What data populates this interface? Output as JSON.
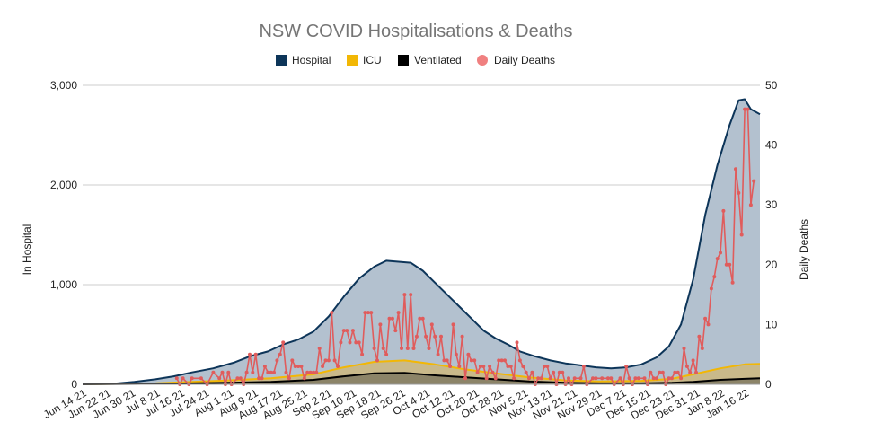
{
  "chart_data": {
    "type": "area",
    "title": "NSW COVID Hospitalisations & Deaths",
    "ylabel": "In Hospital",
    "y2label": "Daily Deaths",
    "ylim": [
      0,
      3000
    ],
    "y2lim": [
      0,
      50
    ],
    "yticks": [
      "0",
      "1,000",
      "2,000",
      "3,000"
    ],
    "y2ticks": [
      "0",
      "10",
      "20",
      "30",
      "40",
      "50"
    ],
    "x_tick_labels": [
      "Jun 14 21",
      "Jun 22 21",
      "Jun 30 21",
      "Jul 8 21",
      "Jul 16 21",
      "Jul 24 21",
      "Aug 1 21",
      "Aug 9 21",
      "Aug 17 21",
      "Aug 25 21",
      "Sep 2 21",
      "Sep 10 21",
      "Sep 18 21",
      "Sep 26 21",
      "Oct 4 21",
      "Oct 12 21",
      "Oct 20 21",
      "Oct 28 21",
      "Nov 5 21",
      "Nov 13 21",
      "Nov 21 21",
      "Nov 29 21",
      "Dec 7 21",
      "Dec 15 21",
      "Dec 23 21",
      "Dec 31 21",
      "Jan 8 22",
      "Jan 16 22"
    ],
    "x_start": "2021-06-14",
    "x_end": "2022-01-23",
    "legend_position": "top-center",
    "grid": true,
    "colors": {
      "hospital_line": "#0d3559",
      "hospital_fill": "#b3c1cf",
      "icu": "#f2b705",
      "icu_fill": "#c9b98a",
      "ventilated": "#000000",
      "ventilated_fill": "#8c8468",
      "deaths": "#e05c5c",
      "deaths_legend": "#f08080"
    },
    "series": [
      {
        "name": "Hospital",
        "axis": "left",
        "points": [
          [
            "2021-06-14",
            0
          ],
          [
            "2021-06-24",
            5
          ],
          [
            "2021-07-01",
            25
          ],
          [
            "2021-07-08",
            50
          ],
          [
            "2021-07-14",
            80
          ],
          [
            "2021-07-20",
            120
          ],
          [
            "2021-07-27",
            160
          ],
          [
            "2021-08-03",
            220
          ],
          [
            "2021-08-08",
            280
          ],
          [
            "2021-08-14",
            330
          ],
          [
            "2021-08-19",
            400
          ],
          [
            "2021-08-24",
            450
          ],
          [
            "2021-08-29",
            530
          ],
          [
            "2021-09-03",
            680
          ],
          [
            "2021-09-08",
            880
          ],
          [
            "2021-09-13",
            1060
          ],
          [
            "2021-09-18",
            1180
          ],
          [
            "2021-09-22",
            1240
          ],
          [
            "2021-09-26",
            1230
          ],
          [
            "2021-09-30",
            1220
          ],
          [
            "2021-10-04",
            1140
          ],
          [
            "2021-10-08",
            1020
          ],
          [
            "2021-10-12",
            900
          ],
          [
            "2021-10-16",
            780
          ],
          [
            "2021-10-20",
            660
          ],
          [
            "2021-10-24",
            540
          ],
          [
            "2021-10-28",
            460
          ],
          [
            "2021-11-01",
            400
          ],
          [
            "2021-11-05",
            330
          ],
          [
            "2021-11-10",
            280
          ],
          [
            "2021-11-15",
            240
          ],
          [
            "2021-11-20",
            210
          ],
          [
            "2021-11-25",
            190
          ],
          [
            "2021-11-30",
            170
          ],
          [
            "2021-12-05",
            160
          ],
          [
            "2021-12-10",
            170
          ],
          [
            "2021-12-15",
            200
          ],
          [
            "2021-12-20",
            270
          ],
          [
            "2021-12-24",
            380
          ],
          [
            "2021-12-28",
            600
          ],
          [
            "2022-01-01",
            1050
          ],
          [
            "2022-01-05",
            1700
          ],
          [
            "2022-01-09",
            2200
          ],
          [
            "2022-01-13",
            2600
          ],
          [
            "2022-01-16",
            2850
          ],
          [
            "2022-01-18",
            2860
          ],
          [
            "2022-01-20",
            2760
          ],
          [
            "2022-01-23",
            2710
          ]
        ]
      },
      {
        "name": "ICU",
        "axis": "left",
        "points": [
          [
            "2021-06-14",
            0
          ],
          [
            "2021-07-08",
            10
          ],
          [
            "2021-07-20",
            25
          ],
          [
            "2021-08-01",
            40
          ],
          [
            "2021-08-15",
            60
          ],
          [
            "2021-08-29",
            100
          ],
          [
            "2021-09-08",
            170
          ],
          [
            "2021-09-18",
            225
          ],
          [
            "2021-09-28",
            240
          ],
          [
            "2021-10-08",
            200
          ],
          [
            "2021-10-18",
            150
          ],
          [
            "2021-10-28",
            110
          ],
          [
            "2021-11-08",
            70
          ],
          [
            "2021-11-20",
            40
          ],
          [
            "2021-12-01",
            30
          ],
          [
            "2021-12-15",
            35
          ],
          [
            "2021-12-25",
            55
          ],
          [
            "2022-01-01",
            100
          ],
          [
            "2022-01-10",
            160
          ],
          [
            "2022-01-18",
            200
          ],
          [
            "2022-01-23",
            205
          ]
        ]
      },
      {
        "name": "Ventilated",
        "axis": "left",
        "points": [
          [
            "2021-06-14",
            0
          ],
          [
            "2021-07-08",
            5
          ],
          [
            "2021-07-20",
            10
          ],
          [
            "2021-08-01",
            15
          ],
          [
            "2021-08-15",
            25
          ],
          [
            "2021-08-29",
            45
          ],
          [
            "2021-09-08",
            80
          ],
          [
            "2021-09-18",
            110
          ],
          [
            "2021-09-28",
            115
          ],
          [
            "2021-10-08",
            90
          ],
          [
            "2021-10-18",
            70
          ],
          [
            "2021-10-28",
            50
          ],
          [
            "2021-11-08",
            30
          ],
          [
            "2021-11-20",
            15
          ],
          [
            "2021-12-01",
            10
          ],
          [
            "2021-12-15",
            10
          ],
          [
            "2021-12-25",
            15
          ],
          [
            "2022-01-01",
            25
          ],
          [
            "2022-01-10",
            45
          ],
          [
            "2022-01-18",
            55
          ],
          [
            "2022-01-23",
            60
          ]
        ]
      },
      {
        "name": "Daily Deaths",
        "axis": "right",
        "points": [
          [
            "2021-07-15",
            1
          ],
          [
            "2021-07-16",
            0
          ],
          [
            "2021-07-17",
            1
          ],
          [
            "2021-07-19",
            0
          ],
          [
            "2021-07-20",
            1
          ],
          [
            "2021-07-23",
            1
          ],
          [
            "2021-07-25",
            0
          ],
          [
            "2021-07-27",
            2
          ],
          [
            "2021-07-29",
            1
          ],
          [
            "2021-07-30",
            2
          ],
          [
            "2021-07-31",
            0
          ],
          [
            "2021-08-01",
            2
          ],
          [
            "2021-08-02",
            0
          ],
          [
            "2021-08-04",
            1
          ],
          [
            "2021-08-05",
            1
          ],
          [
            "2021-08-06",
            0
          ],
          [
            "2021-08-07",
            2
          ],
          [
            "2021-08-08",
            5
          ],
          [
            "2021-08-09",
            2
          ],
          [
            "2021-08-10",
            5
          ],
          [
            "2021-08-11",
            1
          ],
          [
            "2021-08-12",
            1
          ],
          [
            "2021-08-13",
            3
          ],
          [
            "2021-08-14",
            2
          ],
          [
            "2021-08-15",
            2
          ],
          [
            "2021-08-16",
            2
          ],
          [
            "2021-08-17",
            4
          ],
          [
            "2021-08-18",
            5
          ],
          [
            "2021-08-19",
            7
          ],
          [
            "2021-08-20",
            2
          ],
          [
            "2021-08-21",
            1
          ],
          [
            "2021-08-22",
            4
          ],
          [
            "2021-08-23",
            3
          ],
          [
            "2021-08-24",
            3
          ],
          [
            "2021-08-25",
            3
          ],
          [
            "2021-08-26",
            1
          ],
          [
            "2021-08-27",
            2
          ],
          [
            "2021-08-28",
            2
          ],
          [
            "2021-08-29",
            2
          ],
          [
            "2021-08-30",
            2
          ],
          [
            "2021-08-31",
            6
          ],
          [
            "2021-09-01",
            3
          ],
          [
            "2021-09-02",
            4
          ],
          [
            "2021-09-03",
            4
          ],
          [
            "2021-09-04",
            12
          ],
          [
            "2021-09-05",
            4
          ],
          [
            "2021-09-06",
            3
          ],
          [
            "2021-09-07",
            7
          ],
          [
            "2021-09-08",
            9
          ],
          [
            "2021-09-09",
            9
          ],
          [
            "2021-09-10",
            7
          ],
          [
            "2021-09-11",
            9
          ],
          [
            "2021-09-12",
            7
          ],
          [
            "2021-09-13",
            7
          ],
          [
            "2021-09-14",
            5
          ],
          [
            "2021-09-15",
            12
          ],
          [
            "2021-09-16",
            12
          ],
          [
            "2021-09-17",
            12
          ],
          [
            "2021-09-18",
            6
          ],
          [
            "2021-09-19",
            4
          ],
          [
            "2021-09-20",
            10
          ],
          [
            "2021-09-21",
            6
          ],
          [
            "2021-09-22",
            5
          ],
          [
            "2021-09-23",
            11
          ],
          [
            "2021-09-24",
            11
          ],
          [
            "2021-09-25",
            9
          ],
          [
            "2021-09-26",
            12
          ],
          [
            "2021-09-27",
            6
          ],
          [
            "2021-09-28",
            15
          ],
          [
            "2021-09-29",
            6
          ],
          [
            "2021-09-30",
            15
          ],
          [
            "2021-10-01",
            6
          ],
          [
            "2021-10-02",
            8
          ],
          [
            "2021-10-03",
            11
          ],
          [
            "2021-10-04",
            11
          ],
          [
            "2021-10-05",
            8
          ],
          [
            "2021-10-06",
            6
          ],
          [
            "2021-10-07",
            10
          ],
          [
            "2021-10-08",
            8
          ],
          [
            "2021-10-09",
            5
          ],
          [
            "2021-10-10",
            8
          ],
          [
            "2021-10-11",
            4
          ],
          [
            "2021-10-12",
            4
          ],
          [
            "2021-10-13",
            3
          ],
          [
            "2021-10-14",
            10
          ],
          [
            "2021-10-15",
            5
          ],
          [
            "2021-10-16",
            3
          ],
          [
            "2021-10-17",
            8
          ],
          [
            "2021-10-18",
            1
          ],
          [
            "2021-10-19",
            5
          ],
          [
            "2021-10-20",
            4
          ],
          [
            "2021-10-21",
            4
          ],
          [
            "2021-10-22",
            2
          ],
          [
            "2021-10-23",
            3
          ],
          [
            "2021-10-24",
            3
          ],
          [
            "2021-10-25",
            1
          ],
          [
            "2021-10-26",
            3
          ],
          [
            "2021-10-27",
            2
          ],
          [
            "2021-10-28",
            1
          ],
          [
            "2021-10-29",
            4
          ],
          [
            "2021-10-30",
            4
          ],
          [
            "2021-10-31",
            4
          ],
          [
            "2021-11-01",
            3
          ],
          [
            "2021-11-02",
            3
          ],
          [
            "2021-11-03",
            1
          ],
          [
            "2021-11-04",
            7
          ],
          [
            "2021-11-05",
            4
          ],
          [
            "2021-11-06",
            3
          ],
          [
            "2021-11-07",
            2
          ],
          [
            "2021-11-08",
            1
          ],
          [
            "2021-11-09",
            2
          ],
          [
            "2021-11-10",
            0
          ],
          [
            "2021-11-11",
            1
          ],
          [
            "2021-11-12",
            1
          ],
          [
            "2021-11-13",
            3
          ],
          [
            "2021-11-14",
            3
          ],
          [
            "2021-11-15",
            1
          ],
          [
            "2021-11-16",
            2
          ],
          [
            "2021-11-17",
            0
          ],
          [
            "2021-11-18",
            2
          ],
          [
            "2021-11-19",
            2
          ],
          [
            "2021-11-20",
            0
          ],
          [
            "2021-11-21",
            1
          ],
          [
            "2021-11-22",
            0
          ],
          [
            "2021-11-23",
            1
          ],
          [
            "2021-11-25",
            1
          ],
          [
            "2021-11-26",
            3
          ],
          [
            "2021-11-27",
            0
          ],
          [
            "2021-11-29",
            1
          ],
          [
            "2021-11-30",
            1
          ],
          [
            "2021-12-02",
            1
          ],
          [
            "2021-12-04",
            1
          ],
          [
            "2021-12-05",
            1
          ],
          [
            "2021-12-06",
            0
          ],
          [
            "2021-12-08",
            1
          ],
          [
            "2021-12-09",
            0
          ],
          [
            "2021-12-10",
            3
          ],
          [
            "2021-12-11",
            1
          ],
          [
            "2021-12-12",
            0
          ],
          [
            "2021-12-13",
            1
          ],
          [
            "2021-12-14",
            1
          ],
          [
            "2021-12-16",
            1
          ],
          [
            "2021-12-17",
            0
          ],
          [
            "2021-12-18",
            2
          ],
          [
            "2021-12-19",
            1
          ],
          [
            "2021-12-20",
            1
          ],
          [
            "2021-12-21",
            2
          ],
          [
            "2021-12-22",
            2
          ],
          [
            "2021-12-23",
            0
          ],
          [
            "2021-12-24",
            1
          ],
          [
            "2021-12-25",
            1
          ],
          [
            "2021-12-26",
            2
          ],
          [
            "2021-12-27",
            2
          ],
          [
            "2021-12-28",
            1
          ],
          [
            "2021-12-29",
            6
          ],
          [
            "2021-12-30",
            3
          ],
          [
            "2021-12-31",
            2
          ],
          [
            "2022-01-01",
            4
          ],
          [
            "2022-01-02",
            2
          ],
          [
            "2022-01-03",
            8
          ],
          [
            "2022-01-04",
            6
          ],
          [
            "2022-01-05",
            11
          ],
          [
            "2022-01-06",
            10
          ],
          [
            "2022-01-07",
            16
          ],
          [
            "2022-01-08",
            18
          ],
          [
            "2022-01-09",
            21
          ],
          [
            "2022-01-10",
            22
          ],
          [
            "2022-01-11",
            29
          ],
          [
            "2022-01-12",
            20
          ],
          [
            "2022-01-13",
            20
          ],
          [
            "2022-01-14",
            17
          ],
          [
            "2022-01-15",
            36
          ],
          [
            "2022-01-16",
            32
          ],
          [
            "2022-01-17",
            25
          ],
          [
            "2022-01-18",
            46
          ],
          [
            "2022-01-19",
            46
          ],
          [
            "2022-01-20",
            30
          ],
          [
            "2022-01-21",
            34
          ]
        ]
      }
    ]
  }
}
